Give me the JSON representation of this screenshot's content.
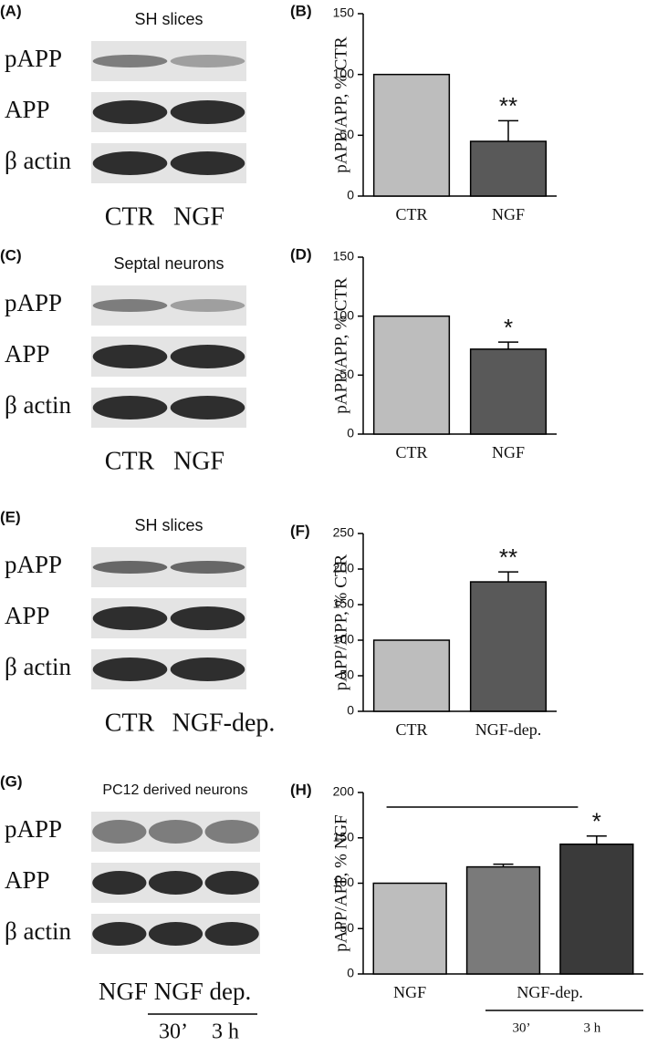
{
  "blots": [
    {
      "panel": "(A)",
      "title": "SH slices",
      "rows": [
        "pAPP",
        "APP",
        "β actin"
      ],
      "lanes": [
        "CTR",
        "NGF"
      ]
    },
    {
      "panel": "(C)",
      "title": "Septal neurons",
      "rows": [
        "pAPP",
        "APP",
        "β actin"
      ],
      "lanes": [
        "CTR",
        "NGF"
      ]
    },
    {
      "panel": "(E)",
      "title": "SH slices",
      "rows": [
        "pAPP",
        "APP",
        "β actin"
      ],
      "lanes": [
        "CTR",
        "NGF-dep."
      ]
    },
    {
      "panel": "(G)",
      "title": "PC12  derived neurons",
      "rows": [
        "pAPP",
        "APP",
        "β actin"
      ],
      "lanes": [
        "NGF",
        "NGF dep."
      ],
      "sublanes": [
        "30’",
        "3 h"
      ]
    }
  ],
  "chart_data": [
    {
      "type": "bar",
      "panel": "(B)",
      "y_label": "pAPP/APP, % CTR",
      "categories": [
        "CTR",
        "NGF"
      ],
      "values": [
        100,
        45
      ],
      "errors": [
        null,
        17
      ],
      "significance": [
        null,
        "**"
      ],
      "colors": [
        "#bdbdbd",
        "#595959"
      ],
      "ylim": [
        0,
        150
      ],
      "yticks": [
        0,
        50,
        100,
        150
      ]
    },
    {
      "type": "bar",
      "panel": "(D)",
      "y_label": "pAPP/APP, % CTR",
      "categories": [
        "CTR",
        "NGF"
      ],
      "values": [
        100,
        72
      ],
      "errors": [
        null,
        6
      ],
      "significance": [
        null,
        "*"
      ],
      "colors": [
        "#bdbdbd",
        "#595959"
      ],
      "ylim": [
        0,
        150
      ],
      "yticks": [
        0,
        50,
        100,
        150
      ]
    },
    {
      "type": "bar",
      "panel": "(F)",
      "y_label": "pAPP/APP, % CTR",
      "categories": [
        "CTR",
        "NGF-dep."
      ],
      "values": [
        100,
        182
      ],
      "errors": [
        null,
        14
      ],
      "significance": [
        null,
        "**"
      ],
      "colors": [
        "#bdbdbd",
        "#595959"
      ],
      "ylim": [
        0,
        250
      ],
      "yticks": [
        0,
        50,
        100,
        150,
        200,
        250
      ]
    },
    {
      "type": "bar",
      "panel": "(H)",
      "y_label": "pAPP/APP, % NGF",
      "categories": [
        "NGF",
        "30’",
        "3 h"
      ],
      "group_label": "NGF-dep.",
      "values": [
        100,
        118,
        143
      ],
      "errors": [
        null,
        3,
        9
      ],
      "significance": [
        null,
        null,
        "*"
      ],
      "colors": [
        "#bdbdbd",
        "#7a7a7a",
        "#3a3a3a"
      ],
      "ylim": [
        0,
        200
      ],
      "yticks": [
        0,
        50,
        100,
        150,
        200
      ]
    }
  ]
}
